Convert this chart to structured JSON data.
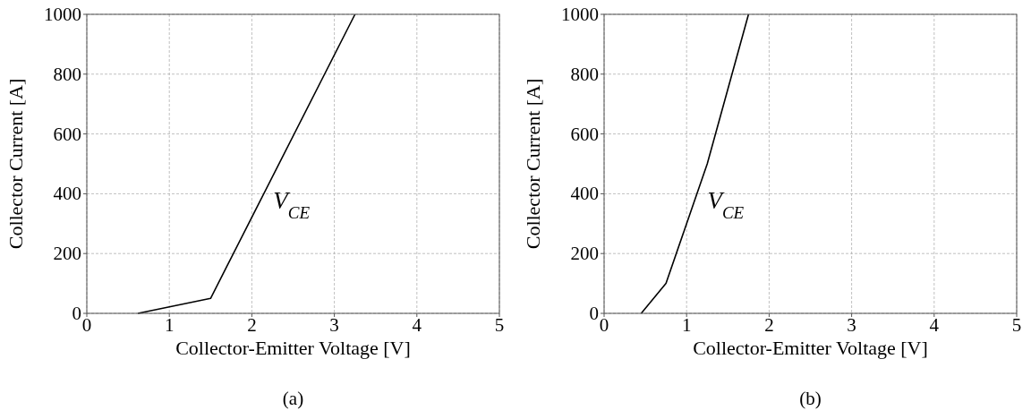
{
  "chart_data": [
    {
      "type": "line",
      "xlabel": "Collector-Emitter Voltage [V]",
      "ylabel": "Collector Current [A]",
      "xlim": [
        0,
        5
      ],
      "ylim": [
        0,
        1000
      ],
      "xticks": [
        0,
        1,
        2,
        3,
        4,
        5
      ],
      "yticks": [
        0,
        200,
        400,
        600,
        800,
        1000
      ],
      "grid": true,
      "line_style": "solid",
      "marker": "none",
      "series": [
        {
          "color": "#000000",
          "x": [
            0.62,
            1.5,
            3.25
          ],
          "values": [
            0,
            50,
            1000
          ]
        }
      ],
      "annotations": [
        "V$_{CE}$",
        "(a)"
      ]
    },
    {
      "type": "line",
      "xlabel": "Collector-Emitter Voltage [V]",
      "ylabel": "Collector Current [A]",
      "xlim": [
        0,
        5
      ],
      "ylim": [
        0,
        1000
      ],
      "xticks": [
        0,
        1,
        2,
        3,
        4,
        5
      ],
      "yticks": [
        0,
        200,
        400,
        600,
        800,
        1000
      ],
      "grid": true,
      "line_style": "solid",
      "marker": "none",
      "series": [
        {
          "color": "#000000",
          "x": [
            0.45,
            0.75,
            1.25,
            1.75
          ],
          "values": [
            0,
            100,
            500,
            1000
          ]
        }
      ],
      "annotations": [
        "V$_{CE}$",
        "(b)"
      ]
    }
  ]
}
